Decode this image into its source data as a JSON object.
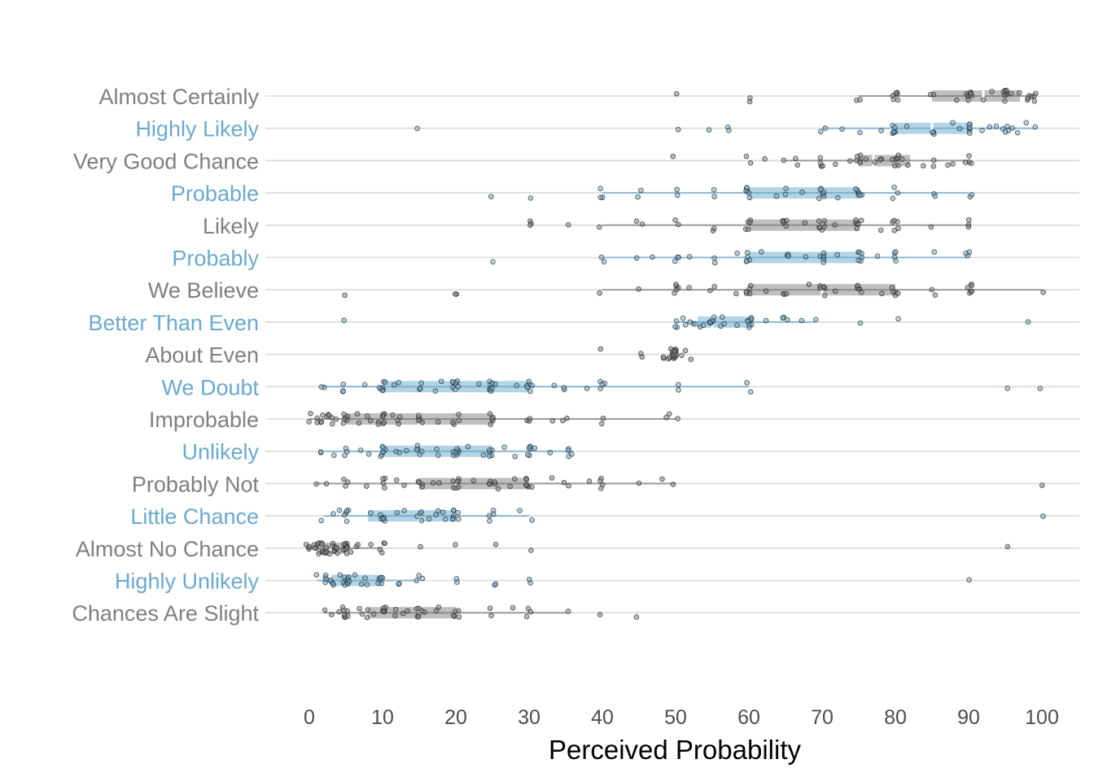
{
  "chart_data": {
    "type": "boxplot",
    "title": "",
    "xlabel": "Perceived Probability",
    "ylabel": "",
    "xlim": [
      0,
      100
    ],
    "x_ticks": [
      0,
      10,
      20,
      30,
      40,
      50,
      60,
      70,
      80,
      90,
      100
    ],
    "colors": {
      "gray": "#7f7f7f",
      "blue": "#6aa9cc",
      "gridline": "#d9d9d9",
      "tick_label": "#4d4d4d"
    },
    "categories": [
      {
        "label": "Almost Certainly",
        "color": "gray",
        "whisker": [
          75,
          99
        ],
        "q1": 85,
        "median": 92,
        "q3": 97,
        "points": [
          50,
          60,
          60,
          75,
          75,
          80,
          80,
          80,
          80,
          80,
          80,
          85,
          85,
          88,
          90,
          90,
          90,
          90,
          90,
          90,
          90,
          90,
          92,
          93,
          95,
          95,
          95,
          95,
          95,
          95,
          95,
          95,
          96,
          97,
          98,
          98,
          98,
          99,
          99,
          99,
          99
        ]
      },
      {
        "label": "Highly Likely",
        "color": "blue",
        "whisker": [
          70,
          99
        ],
        "q1": 80,
        "median": 85,
        "q3": 90,
        "points": [
          15,
          50,
          55,
          57,
          57,
          70,
          70,
          73,
          75,
          78,
          80,
          80,
          80,
          80,
          80,
          80,
          82,
          85,
          85,
          85,
          88,
          89,
          90,
          90,
          90,
          90,
          90,
          90,
          92,
          93,
          94,
          95,
          95,
          95,
          95,
          96,
          97,
          98,
          99
        ]
      },
      {
        "label": "Very Good Chance",
        "color": "gray",
        "whisker": [
          65,
          90
        ],
        "q1": 75,
        "median": 77,
        "q3": 82,
        "points": [
          50,
          60,
          60,
          62,
          65,
          66,
          67,
          70,
          70,
          70,
          70,
          72,
          74,
          75,
          75,
          75,
          75,
          75,
          76,
          77,
          78,
          78,
          80,
          80,
          80,
          80,
          80,
          80,
          80,
          81,
          82,
          84,
          85,
          85,
          87,
          88,
          90,
          90,
          90,
          90
        ]
      },
      {
        "label": "Probable",
        "color": "blue",
        "whisker": [
          40,
          90
        ],
        "q1": 60,
        "median": 70,
        "q3": 75,
        "points": [
          25,
          30,
          40,
          40,
          40,
          45,
          45,
          50,
          50,
          55,
          55,
          60,
          60,
          60,
          60,
          60,
          60,
          64,
          65,
          65,
          67,
          70,
          70,
          70,
          70,
          70,
          70,
          70,
          72,
          75,
          75,
          75,
          75,
          75,
          75,
          75,
          80,
          80,
          80,
          85,
          85,
          90,
          90
        ]
      },
      {
        "label": "Likely",
        "color": "gray",
        "whisker": [
          40,
          90
        ],
        "q1": 60,
        "median": 70,
        "q3": 75,
        "points": [
          30,
          30,
          30,
          35,
          40,
          45,
          45,
          50,
          50,
          55,
          55,
          60,
          60,
          60,
          60,
          60,
          65,
          65,
          65,
          65,
          65,
          68,
          70,
          70,
          70,
          70,
          70,
          70,
          70,
          72,
          75,
          75,
          75,
          75,
          75,
          75,
          78,
          80,
          80,
          80,
          80,
          80,
          85,
          90,
          90,
          90
        ]
      },
      {
        "label": "Probably",
        "color": "blue",
        "whisker": [
          40,
          90
        ],
        "q1": 60,
        "median": 70,
        "q3": 75,
        "points": [
          25,
          40,
          40,
          45,
          47,
          50,
          50,
          50,
          52,
          55,
          55,
          58,
          60,
          60,
          60,
          60,
          60,
          62,
          65,
          65,
          65,
          68,
          70,
          70,
          70,
          70,
          70,
          70,
          72,
          75,
          75,
          75,
          75,
          75,
          75,
          78,
          80,
          80,
          80,
          80,
          85,
          90,
          90,
          90
        ]
      },
      {
        "label": "We Believe",
        "color": "gray",
        "whisker": [
          40,
          100
        ],
        "q1": 60,
        "median": 70,
        "q3": 80,
        "points": [
          5,
          20,
          20,
          40,
          45,
          50,
          50,
          50,
          50,
          50,
          52,
          55,
          55,
          58,
          60,
          60,
          60,
          60,
          60,
          62,
          65,
          65,
          65,
          68,
          70,
          70,
          70,
          70,
          70,
          70,
          72,
          75,
          75,
          75,
          75,
          75,
          78,
          80,
          80,
          80,
          80,
          80,
          85,
          85,
          90,
          90,
          90,
          90,
          90,
          90,
          100
        ]
      },
      {
        "label": "Better Than Even",
        "color": "blue",
        "whisker": [
          50,
          69
        ],
        "q1": 53,
        "median": 55,
        "q3": 60,
        "points": [
          5,
          50,
          50,
          50,
          51,
          51,
          52,
          52,
          53,
          53,
          54,
          55,
          55,
          55,
          55,
          55,
          55,
          56,
          56,
          57,
          58,
          60,
          60,
          60,
          60,
          60,
          60,
          60,
          60,
          62,
          65,
          65,
          65,
          67,
          69,
          75,
          80,
          98
        ]
      },
      {
        "label": "About Even",
        "color": "gray",
        "whisker": [
          50,
          50
        ],
        "q1": 50,
        "median": 50,
        "q3": 50,
        "points": [
          40,
          45,
          45,
          48,
          48,
          49,
          49,
          49,
          50,
          50,
          50,
          50,
          50,
          50,
          50,
          50,
          50,
          50,
          50,
          50,
          50,
          50,
          50,
          51,
          51,
          52
        ]
      },
      {
        "label": "We Doubt",
        "color": "blue",
        "whisker": [
          2,
          60
        ],
        "q1": 10,
        "median": 20,
        "q3": 30,
        "points": [
          2,
          2,
          5,
          5,
          5,
          8,
          10,
          10,
          10,
          10,
          10,
          10,
          10,
          12,
          12,
          15,
          15,
          15,
          17,
          18,
          20,
          20,
          20,
          20,
          20,
          20,
          20,
          20,
          23,
          25,
          25,
          25,
          25,
          25,
          25,
          25,
          25,
          28,
          30,
          30,
          30,
          30,
          30,
          30,
          33,
          35,
          35,
          38,
          40,
          40,
          40,
          40,
          50,
          50,
          60,
          60,
          95,
          100
        ]
      },
      {
        "label": "Improbable",
        "color": "gray",
        "whisker": [
          0,
          50
        ],
        "q1": 5,
        "median": 15,
        "q3": 25,
        "points": [
          0,
          0,
          1,
          1,
          2,
          2,
          2,
          2,
          3,
          3,
          3,
          3,
          4,
          5,
          5,
          5,
          5,
          5,
          5,
          7,
          7,
          8,
          8,
          9,
          9,
          10,
          10,
          10,
          10,
          10,
          10,
          11,
          12,
          12,
          12,
          15,
          15,
          15,
          15,
          15,
          18,
          20,
          20,
          20,
          20,
          25,
          25,
          25,
          25,
          25,
          30,
          30,
          30,
          33,
          35,
          35,
          40,
          40,
          49,
          49,
          50
        ]
      },
      {
        "label": "Unlikely",
        "color": "blue",
        "whisker": [
          2,
          36
        ],
        "q1": 10,
        "median": 20,
        "q3": 25,
        "points": [
          2,
          2,
          3,
          5,
          5,
          5,
          7,
          8,
          10,
          10,
          10,
          10,
          10,
          10,
          10,
          12,
          12,
          13,
          15,
          15,
          15,
          15,
          15,
          17,
          18,
          20,
          20,
          20,
          20,
          20,
          20,
          20,
          20,
          22,
          24,
          25,
          25,
          25,
          25,
          25,
          27,
          28,
          30,
          30,
          30,
          30,
          30,
          30,
          31,
          33,
          35,
          35,
          35,
          36
        ]
      },
      {
        "label": "Probably Not",
        "color": "gray",
        "whisker": [
          1,
          50
        ],
        "q1": 15,
        "median": 20,
        "q3": 30,
        "points": [
          1,
          2,
          5,
          5,
          5,
          8,
          10,
          10,
          10,
          10,
          12,
          13,
          15,
          15,
          15,
          15,
          17,
          18,
          20,
          20,
          20,
          20,
          20,
          20,
          20,
          22,
          25,
          25,
          25,
          25,
          25,
          26,
          27,
          28,
          30,
          30,
          30,
          30,
          30,
          30,
          33,
          35,
          35,
          38,
          40,
          40,
          40,
          40,
          45,
          48,
          50,
          100
        ]
      },
      {
        "label": "Little Chance",
        "color": "blue",
        "whisker": [
          2,
          30
        ],
        "q1": 8,
        "median": 15,
        "q3": 20,
        "points": [
          2,
          3,
          4,
          5,
          5,
          5,
          5,
          5,
          8,
          10,
          10,
          10,
          10,
          10,
          10,
          12,
          13,
          15,
          15,
          15,
          15,
          16,
          17,
          18,
          18,
          19,
          20,
          20,
          20,
          20,
          20,
          20,
          20,
          25,
          25,
          25,
          25,
          29,
          30,
          100
        ]
      },
      {
        "label": "Almost No Chance",
        "color": "gray",
        "whisker": [
          0,
          10
        ],
        "q1": 1,
        "median": 3,
        "q3": 5,
        "points": [
          0,
          0,
          0,
          0,
          1,
          1,
          1,
          1,
          1,
          1,
          2,
          2,
          2,
          2,
          2,
          2,
          2,
          2,
          3,
          3,
          3,
          3,
          3,
          3,
          4,
          4,
          4,
          5,
          5,
          5,
          5,
          5,
          5,
          5,
          5,
          5,
          5,
          5,
          6,
          6,
          7,
          8,
          10,
          10,
          10,
          10,
          15,
          20,
          25,
          30,
          95
        ]
      },
      {
        "label": "Highly Unlikely",
        "color": "blue",
        "whisker": [
          1,
          15
        ],
        "q1": 3,
        "median": 5,
        "q3": 10,
        "points": [
          1,
          2,
          2,
          2,
          2,
          3,
          3,
          3,
          3,
          4,
          5,
          5,
          5,
          5,
          5,
          5,
          5,
          5,
          5,
          5,
          5,
          5,
          6,
          7,
          8,
          8,
          9,
          10,
          10,
          10,
          10,
          10,
          12,
          12,
          15,
          15,
          15,
          20,
          20,
          25,
          25,
          30,
          30,
          90
        ]
      },
      {
        "label": "Chances Are Slight",
        "color": "gray",
        "whisker": [
          2,
          35
        ],
        "q1": 8,
        "median": 15,
        "q3": 20,
        "points": [
          2,
          3,
          4,
          5,
          5,
          5,
          5,
          5,
          5,
          5,
          7,
          7,
          8,
          8,
          9,
          10,
          10,
          10,
          10,
          10,
          10,
          12,
          12,
          13,
          13,
          15,
          15,
          15,
          15,
          15,
          15,
          16,
          17,
          18,
          20,
          20,
          20,
          20,
          20,
          25,
          25,
          28,
          30,
          30,
          30,
          35,
          40,
          45
        ]
      }
    ]
  }
}
